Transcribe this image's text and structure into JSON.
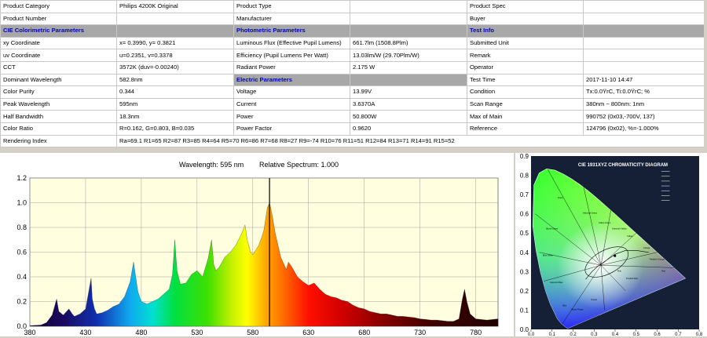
{
  "table": {
    "rows": [
      {
        "cells": [
          {
            "text": "Product Category"
          },
          {
            "text": "Philips 4200K Original"
          },
          {
            "text": "Product Type"
          },
          {
            "text": ""
          },
          {
            "text": "Product Spec"
          },
          {
            "text": ""
          }
        ]
      },
      {
        "cells": [
          {
            "text": "Product Number"
          },
          {
            "text": ""
          },
          {
            "text": "Manufacturer"
          },
          {
            "text": ""
          },
          {
            "text": "Buyer"
          },
          {
            "text": ""
          }
        ]
      },
      {
        "section": true,
        "cells": [
          {
            "text": "CIE Colorimetric Parameters"
          },
          {
            "text": ""
          },
          {
            "text": "Photometric Parameters"
          },
          {
            "text": ""
          },
          {
            "text": "Test Info"
          },
          {
            "text": ""
          }
        ]
      },
      {
        "cells": [
          {
            "text": "xy Coordinate"
          },
          {
            "text": "x= 0.3990, y= 0.3821"
          },
          {
            "text": "Luminous Flux (Effective Pupil Lumens)"
          },
          {
            "text": "661.7lm (1508.8Plm)"
          },
          {
            "text": "Submitted Unit"
          },
          {
            "text": ""
          }
        ]
      },
      {
        "cells": [
          {
            "text": "uv Coordinate"
          },
          {
            "text": "u=0.2351, v=0.3378"
          },
          {
            "text": "Efficiency (Pupil Lumens Per Watt)"
          },
          {
            "text": "13.03lm/W (29.70Plm/W)"
          },
          {
            "text": "Remark"
          },
          {
            "text": ""
          }
        ]
      },
      {
        "cells": [
          {
            "text": "CCT"
          },
          {
            "text": "3572K (duv=-0.00240)"
          },
          {
            "text": "Radiant Power"
          },
          {
            "text": "2.175 W"
          },
          {
            "text": "Operator"
          },
          {
            "text": ""
          }
        ]
      },
      {
        "electric": true,
        "cells": [
          {
            "text": "Dominant Wavelength"
          },
          {
            "text": "582.8nm"
          },
          {
            "text": "Electric Parameters"
          },
          {
            "text": ""
          },
          {
            "text": "Test Time"
          },
          {
            "text": "2017-11-10 14:47"
          }
        ]
      },
      {
        "cells": [
          {
            "text": "Color Purity"
          },
          {
            "text": "0.344"
          },
          {
            "text": "Voltage"
          },
          {
            "text": "13.99V"
          },
          {
            "text": "Condition"
          },
          {
            "text": "Tx:0.0ŸrC, Ti:0.0ŸrC; %"
          }
        ]
      },
      {
        "cells": [
          {
            "text": "Peak Wavelength"
          },
          {
            "text": "595nm"
          },
          {
            "text": "Current"
          },
          {
            "text": "3.6370A"
          },
          {
            "text": "Scan Range"
          },
          {
            "text": "380nm ~ 800nm: 1nm"
          }
        ]
      },
      {
        "cells": [
          {
            "text": "Half Bandwidth"
          },
          {
            "text": "18.3nm"
          },
          {
            "text": "Power"
          },
          {
            "text": "50.800W"
          },
          {
            "text": "Max of Main"
          },
          {
            "text": "990752 (0x03,-700V, 137)"
          }
        ]
      },
      {
        "cells": [
          {
            "text": "Color Ratio"
          },
          {
            "text": "R=0.162, G=0.803, B=0.035"
          },
          {
            "text": "Power Factor"
          },
          {
            "text": "0.9620"
          },
          {
            "text": "Reference"
          },
          {
            "text": "124796 (0x02), %=-1.000%"
          }
        ]
      },
      {
        "rendering": true,
        "cells": [
          {
            "text": "Rendering Index"
          },
          {
            "text": "Ra=69.1  R1=65 R2=87 R3=85 R4=64 R5=70 R6=86 R7=68 R8=27 R9=-74 R10=76 R11=51 R12=84 R13=71 R14=91 R15=52"
          }
        ]
      }
    ]
  },
  "spectrum": {
    "header_wavelength": "Wavelength: 595 nm",
    "header_relative": "Relative Spectrum: 1.000",
    "colors": {
      "background": "#ffffe0",
      "grid": "#a0a0a0",
      "cursor": "#000000"
    }
  },
  "chart_data": {
    "type": "area",
    "title": "",
    "xlabel": "",
    "ylabel": "",
    "xlim": [
      380,
      800
    ],
    "ylim": [
      0,
      1.2
    ],
    "x_ticks": [
      "380",
      "430",
      "480",
      "530",
      "580",
      "630",
      "680",
      "730",
      "780"
    ],
    "y_ticks": [
      "0.0",
      "0.2",
      "0.4",
      "0.6",
      "0.8",
      "1.0",
      "1.2"
    ],
    "grid": true,
    "cursor_x": 595,
    "x": [
      380,
      390,
      395,
      400,
      404,
      406,
      410,
      415,
      418,
      420,
      425,
      430,
      433,
      435,
      436,
      438,
      440,
      445,
      450,
      455,
      460,
      465,
      470,
      473,
      475,
      477,
      480,
      485,
      490,
      495,
      500,
      505,
      508,
      510,
      512,
      515,
      520,
      525,
      530,
      535,
      540,
      543,
      545,
      547,
      550,
      555,
      560,
      565,
      570,
      573,
      575,
      578,
      580,
      585,
      588,
      590,
      593,
      595,
      597,
      600,
      605,
      610,
      612,
      615,
      620,
      625,
      630,
      635,
      640,
      645,
      650,
      655,
      660,
      665,
      670,
      675,
      680,
      685,
      690,
      695,
      700,
      705,
      710,
      715,
      720,
      725,
      730,
      735,
      740,
      745,
      750,
      755,
      760,
      765,
      768,
      770,
      772,
      775,
      780,
      790,
      800
    ],
    "y": [
      0.005,
      0.01,
      0.03,
      0.09,
      0.22,
      0.12,
      0.09,
      0.14,
      0.1,
      0.08,
      0.1,
      0.14,
      0.29,
      0.39,
      0.22,
      0.14,
      0.1,
      0.11,
      0.13,
      0.16,
      0.18,
      0.24,
      0.36,
      0.52,
      0.4,
      0.28,
      0.2,
      0.18,
      0.2,
      0.22,
      0.26,
      0.3,
      0.42,
      0.7,
      0.45,
      0.34,
      0.35,
      0.42,
      0.45,
      0.4,
      0.55,
      0.7,
      0.5,
      0.45,
      0.48,
      0.56,
      0.6,
      0.66,
      0.75,
      0.82,
      0.7,
      0.6,
      0.58,
      0.65,
      0.72,
      0.78,
      0.96,
      1.0,
      0.92,
      0.76,
      0.56,
      0.46,
      0.52,
      0.48,
      0.4,
      0.36,
      0.33,
      0.35,
      0.3,
      0.26,
      0.24,
      0.23,
      0.21,
      0.2,
      0.17,
      0.15,
      0.14,
      0.12,
      0.11,
      0.1,
      0.1,
      0.09,
      0.08,
      0.08,
      0.075,
      0.07,
      0.06,
      0.055,
      0.05,
      0.05,
      0.045,
      0.04,
      0.04,
      0.06,
      0.22,
      0.3,
      0.2,
      0.1,
      0.06,
      0.05,
      0.06
    ]
  },
  "cie": {
    "title": "CIE 1931XYZ CHROMATICITY DIAGRAM",
    "x_ticks": [
      "0.0",
      "0.1",
      "0.2",
      "0.3",
      "0.4",
      "0.5",
      "0.6",
      "0.7",
      "0.8"
    ],
    "y_ticks": [
      "0.9",
      "0.8",
      "0.7",
      "0.6",
      "0.5",
      "0.4",
      "0.3",
      "0.2",
      "0.1",
      "0.0"
    ],
    "region_labels": [
      "Green",
      "Yellowish Green",
      "Yellow Green",
      "Greenish Yellow",
      "Yellow",
      "Orange",
      "Reddish Orange",
      "Red",
      "Purplish Red",
      "Pink",
      "Purple",
      "Bluish Purple",
      "Blue",
      "Greenish Blue",
      "Blue Green",
      "Bluish Green"
    ],
    "point": {
      "x": 0.399,
      "y": 0.3821
    },
    "colors": {
      "panel": "#152036",
      "text": "#ffffff"
    }
  }
}
